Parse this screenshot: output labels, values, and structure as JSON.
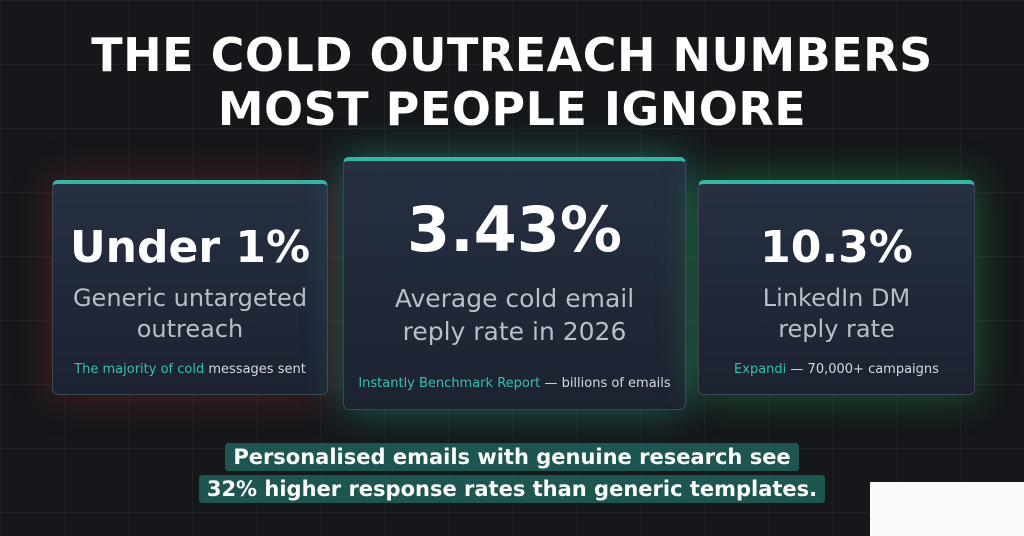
{
  "title_lines": [
    "THE COLD OUTREACH NUMBERS",
    "MOST PEOPLE IGNORE"
  ],
  "cards": [
    {
      "stat": "Under 1%",
      "label": "Generic untargeted outreach",
      "source_highlight": "The majority of cold",
      "source_rest": "messages sent"
    },
    {
      "stat": "3.43%",
      "label": "Average cold email reply rate in 2026",
      "source_highlight": "Instantly Benchmark Report",
      "source_rest": "— billions of emails"
    },
    {
      "stat": "10.3%",
      "label": "LinkedIn DM reply rate",
      "source_highlight": "Expandi",
      "source_rest": "— 70,000+ campaigns"
    }
  ],
  "footer_lines": [
    "Personalised emails with genuine research see",
    "32% higher response rates than generic templates."
  ]
}
